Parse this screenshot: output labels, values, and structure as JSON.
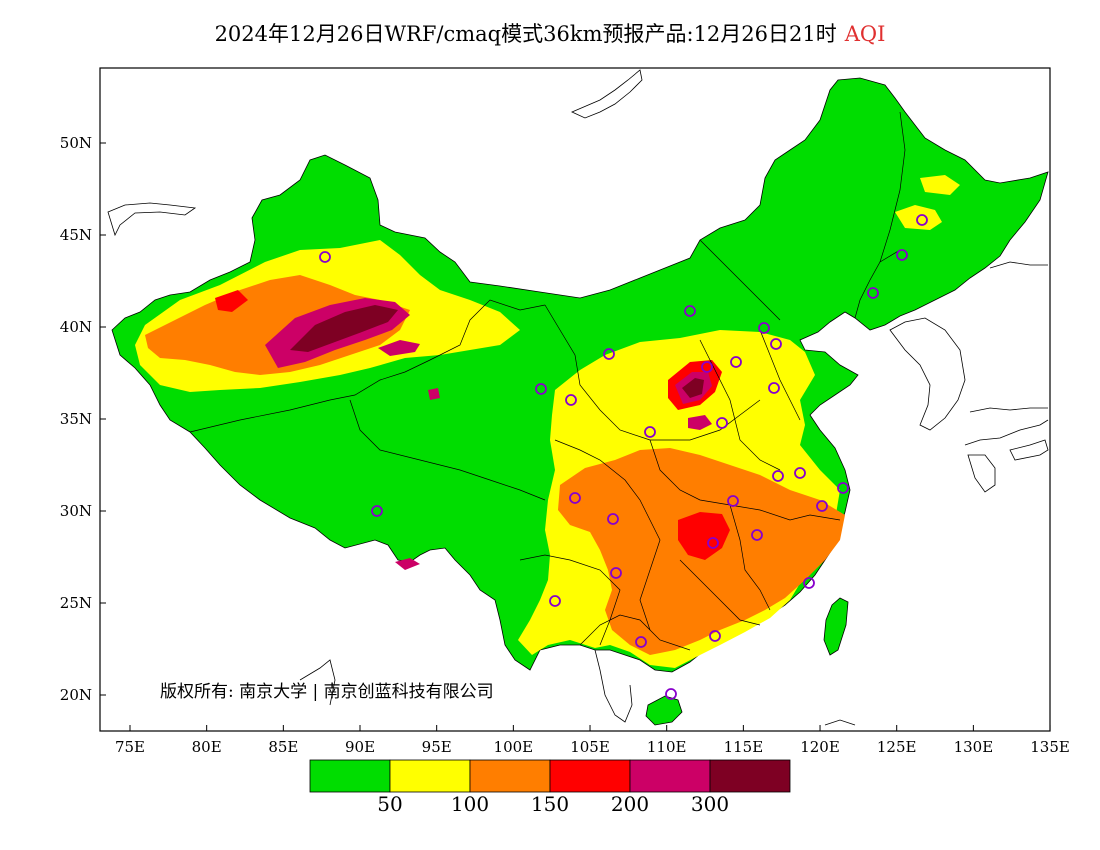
{
  "title": {
    "main": "2024年12月26日WRF/cmaq模式36km预报产品:12月26日21时",
    "product": "AQI"
  },
  "map": {
    "lat_axis": {
      "labels": [
        "50N",
        "45N",
        "40N",
        "35N",
        "30N",
        "25N",
        "20N"
      ]
    },
    "lon_axis": {
      "labels": [
        "75E",
        "80E",
        "85E",
        "90E",
        "95E",
        "100E",
        "105E",
        "110E",
        "115E",
        "120E",
        "125E",
        "130E",
        "135E"
      ]
    },
    "copyright": "版权所有: 南京大学 | 南京创蓝科技有限公司"
  },
  "legend": {
    "colors": [
      "#00dd00",
      "#ffff00",
      "#ff7e00",
      "#ff0000",
      "#cc0066",
      "#7e0023"
    ],
    "labels": [
      "50",
      "100",
      "150",
      "200",
      "300"
    ]
  },
  "colors": {
    "good": "#00dd00",
    "moderate": "#ffff00",
    "unhealthy_sensitive": "#ff7e00",
    "unhealthy": "#ff0000",
    "very_unhealthy": "#cc0066",
    "hazardous": "#7e0023",
    "station_marker": "#8800cc"
  }
}
